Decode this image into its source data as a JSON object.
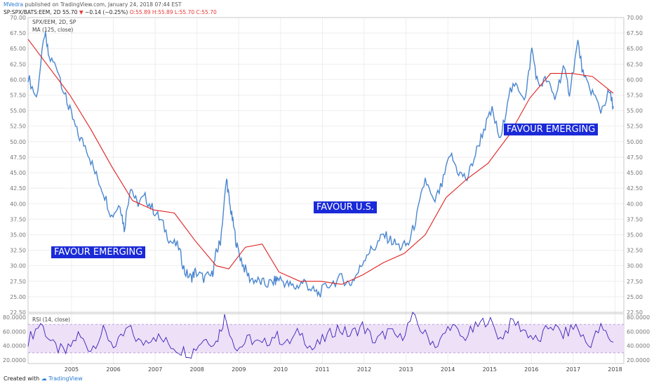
{
  "header": {
    "author": "MVedra",
    "published": "published on TradingView.com, January 24, 2018 07:44 EST",
    "symbol": "SP:SPX/BATS:EEM, 2D",
    "last": "55.70",
    "change": "−0.14 (−0.25%)",
    "ohlc": "O:55.89 H:55.89 L:55.70 C:55.70",
    "arrow": "▼"
  },
  "legend": {
    "main": "SPX/EEM, 2D, SP",
    "ma": "MA (125, close)",
    "rsi": "RSI (14, close)"
  },
  "annotations": {
    "a1": "FAVOUR EMERGING",
    "a2": "FAVOUR U.S.",
    "a3": "FAVOUR EMERGING"
  },
  "footer": {
    "created": "Created with",
    "brand": "TradingView"
  },
  "colors": {
    "price": "#4a86d0",
    "ma": "#e02020",
    "rsi": "#3a1fb8",
    "rsi_band": "#ede0f7",
    "label_bg": "#1a2ad8"
  },
  "chart_data": [
    {
      "type": "line",
      "title": "SPX/EEM, 2D, SP",
      "x_ticks": [
        "2005",
        "2006",
        "2007",
        "2008",
        "2009",
        "2010",
        "2011",
        "2012",
        "2013",
        "2014",
        "2015",
        "2016",
        "2017",
        "2018"
      ],
      "y_ticks": [
        "22.50",
        "25.00",
        "27.50",
        "30.00",
        "32.50",
        "35.00",
        "37.50",
        "40.00",
        "42.50",
        "45.00",
        "47.50",
        "50.00",
        "52.50",
        "55.00",
        "57.50",
        "60.00",
        "62.50",
        "65.00",
        "67.50",
        "70.00"
      ],
      "ylim": [
        22.5,
        70
      ],
      "grid": true,
      "series": [
        {
          "name": "SPX/EEM",
          "x": [
            2004.0,
            2004.2,
            2004.4,
            2004.5,
            2004.7,
            2004.9,
            2005.0,
            2005.2,
            2005.4,
            2005.6,
            2005.8,
            2006.0,
            2006.2,
            2006.3,
            2006.45,
            2006.6,
            2006.8,
            2007.0,
            2007.2,
            2007.4,
            2007.6,
            2007.75,
            2007.9,
            2008.0,
            2008.2,
            2008.4,
            2008.5,
            2008.6,
            2008.75,
            2008.82,
            2008.9,
            2009.0,
            2009.15,
            2009.3,
            2009.5,
            2009.7,
            2009.9,
            2010.0,
            2010.2,
            2010.4,
            2010.6,
            2010.8,
            2010.95,
            2011.2,
            2011.5,
            2011.7,
            2011.9,
            2012.1,
            2012.3,
            2012.5,
            2012.7,
            2012.9,
            2013.1,
            2013.3,
            2013.5,
            2013.7,
            2013.9,
            2014.1,
            2014.3,
            2014.5,
            2014.7,
            2014.9,
            2015.1,
            2015.3,
            2015.5,
            2015.7,
            2015.9,
            2016.05,
            2016.2,
            2016.4,
            2016.6,
            2016.8,
            2016.95,
            2017.15,
            2017.3,
            2017.5,
            2017.7,
            2017.9,
            2018.0
          ],
          "values": [
            60.5,
            57,
            67.5,
            63.5,
            62,
            57,
            55,
            51,
            49,
            45,
            42,
            38,
            40,
            36,
            43,
            40,
            41,
            39,
            37,
            34,
            33,
            29,
            28,
            29,
            28,
            28.5,
            32,
            34,
            44,
            40,
            37,
            33,
            30,
            28,
            27.5,
            27,
            27.5,
            28,
            27,
            26.5,
            27.5,
            26,
            25.5,
            27,
            28,
            27,
            29,
            32,
            33,
            35,
            34,
            33,
            33.5,
            38,
            44,
            40,
            43,
            48,
            45,
            44,
            48,
            52,
            55,
            50,
            58,
            59,
            57,
            65,
            59,
            60,
            57,
            62,
            58,
            66,
            60,
            58,
            55,
            58,
            55.7
          ]
        },
        {
          "name": "MA (125, close)",
          "x": [
            2004.0,
            2004.5,
            2005.0,
            2005.5,
            2006.0,
            2006.5,
            2007.0,
            2007.5,
            2008.0,
            2008.5,
            2008.8,
            2009.2,
            2009.6,
            2010.0,
            2010.5,
            2011.0,
            2011.5,
            2012.0,
            2012.5,
            2013.0,
            2013.5,
            2014.0,
            2014.5,
            2015.0,
            2015.5,
            2016.0,
            2016.5,
            2017.0,
            2017.5,
            2018.0
          ],
          "values": [
            66.5,
            62,
            57.5,
            52,
            46,
            40.5,
            39,
            38.5,
            34,
            30,
            29.5,
            33,
            33.5,
            29,
            27.5,
            27.5,
            27,
            28.5,
            30.5,
            32,
            35,
            41,
            44,
            46.5,
            51,
            57,
            61,
            61,
            60.5,
            57.8
          ]
        }
      ]
    },
    {
      "type": "line",
      "title": "RSI (14, close)",
      "y_ticks": [
        "20.0000",
        "40.0000",
        "60.0000",
        "80.0000"
      ],
      "ylim": [
        15,
        85
      ],
      "series": [
        {
          "name": "RSI (14, close)",
          "x": [
            2004.0,
            2004.3,
            2004.6,
            2004.9,
            2005.2,
            2005.5,
            2005.8,
            2006.1,
            2006.4,
            2006.7,
            2007.0,
            2007.3,
            2007.6,
            2007.9,
            2008.2,
            2008.5,
            2008.7,
            2009.0,
            2009.3,
            2009.6,
            2009.9,
            2010.2,
            2010.5,
            2010.8,
            2011.1,
            2011.4,
            2011.7,
            2012.0,
            2012.3,
            2012.6,
            2012.9,
            2013.2,
            2013.5,
            2013.8,
            2014.1,
            2014.4,
            2014.7,
            2015.0,
            2015.3,
            2015.6,
            2015.9,
            2016.2,
            2016.5,
            2016.8,
            2017.1,
            2017.4,
            2017.7,
            2018.0
          ],
          "values": [
            48,
            72,
            40,
            30,
            55,
            35,
            60,
            38,
            65,
            42,
            55,
            45,
            35,
            30,
            50,
            45,
            80,
            35,
            50,
            40,
            55,
            42,
            60,
            35,
            50,
            65,
            55,
            68,
            45,
            60,
            50,
            80,
            55,
            40,
            70,
            50,
            65,
            78,
            50,
            75,
            60,
            45,
            70,
            55,
            68,
            40,
            65,
            45
          ]
        }
      ]
    }
  ]
}
